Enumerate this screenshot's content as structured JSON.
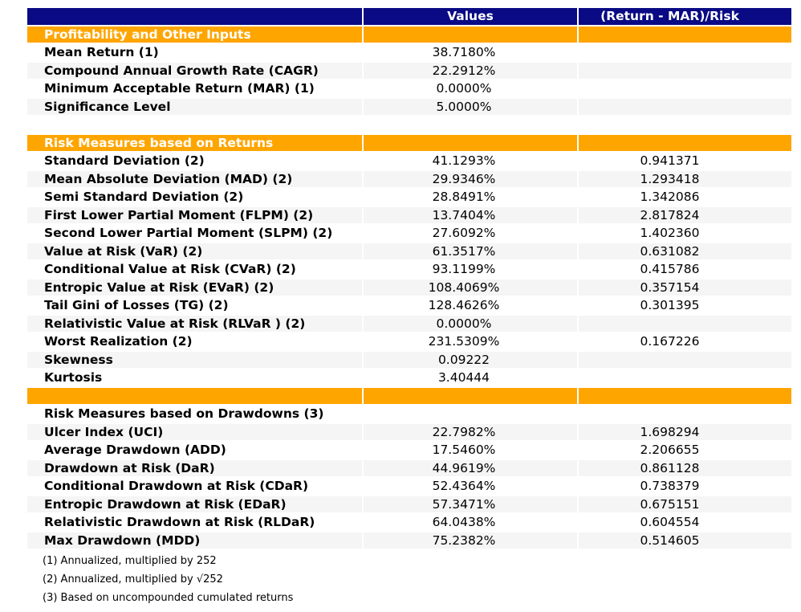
{
  "chart_data": {
    "type": "table",
    "columns": [
      {
        "label": ""
      },
      {
        "label": "Values"
      },
      {
        "label": "(Return - MAR)/Risk"
      }
    ],
    "rows": [
      {
        "type": "section",
        "label": "Profitability and Other Inputs",
        "value": "",
        "ratio": ""
      },
      {
        "type": "data",
        "label": "Mean Return (1)",
        "value": "38.7180%",
        "ratio": ""
      },
      {
        "type": "data",
        "label": "Compound Annual Growth Rate (CAGR)",
        "value": "22.2912%",
        "ratio": ""
      },
      {
        "type": "data",
        "label": "Minimum Acceptable Return (MAR) (1)",
        "value": "0.0000%",
        "ratio": ""
      },
      {
        "type": "data",
        "label": "Significance Level",
        "value": "5.0000%",
        "ratio": ""
      },
      {
        "type": "data",
        "label": "",
        "value": "",
        "ratio": ""
      },
      {
        "type": "section",
        "label": "Risk Measures based on Returns",
        "value": "",
        "ratio": ""
      },
      {
        "type": "data",
        "label": "Standard Deviation (2)",
        "value": "41.1293%",
        "ratio": "0.941371"
      },
      {
        "type": "data",
        "label": "Mean Absolute Deviation (MAD) (2)",
        "value": "29.9346%",
        "ratio": "1.293418"
      },
      {
        "type": "data",
        "label": "Semi Standard Deviation (2)",
        "value": "28.8491%",
        "ratio": "1.342086"
      },
      {
        "type": "data",
        "label": "First Lower Partial Moment (FLPM) (2)",
        "value": "13.7404%",
        "ratio": "2.817824"
      },
      {
        "type": "data",
        "label": "Second Lower Partial Moment (SLPM) (2)",
        "value": "27.6092%",
        "ratio": "1.402360"
      },
      {
        "type": "data",
        "label": "Value at Risk (VaR) (2)",
        "value": "61.3517%",
        "ratio": "0.631082"
      },
      {
        "type": "data",
        "label": "Conditional Value at Risk (CVaR) (2)",
        "value": "93.1199%",
        "ratio": "0.415786"
      },
      {
        "type": "data",
        "label": "Entropic Value at Risk (EVaR) (2)",
        "value": "108.4069%",
        "ratio": "0.357154"
      },
      {
        "type": "data",
        "label": "Tail Gini of Losses (TG) (2)",
        "value": "128.4626%",
        "ratio": "0.301395"
      },
      {
        "type": "data",
        "label": "Relativistic Value at Risk (RLVaR ) (2)",
        "value": "0.0000%",
        "ratio": ""
      },
      {
        "type": "data",
        "label": "Worst Realization (2)",
        "value": "231.5309%",
        "ratio": "0.167226"
      },
      {
        "type": "data",
        "label": "Skewness",
        "value": "0.09222",
        "ratio": ""
      },
      {
        "type": "data",
        "label": "Kurtosis",
        "value": "3.40444",
        "ratio": ""
      },
      {
        "type": "section",
        "label": "",
        "value": "",
        "ratio": ""
      },
      {
        "type": "data",
        "label": "Risk Measures based on Drawdowns (3)",
        "value": "",
        "ratio": ""
      },
      {
        "type": "data",
        "label": "Ulcer Index (UCI)",
        "value": "22.7982%",
        "ratio": "1.698294"
      },
      {
        "type": "data",
        "label": "Average Drawdown (ADD)",
        "value": "17.5460%",
        "ratio": "2.206655"
      },
      {
        "type": "data",
        "label": "Drawdown at Risk (DaR)",
        "value": "44.9619%",
        "ratio": "0.861128"
      },
      {
        "type": "data",
        "label": "Conditional Drawdown at Risk (CDaR)",
        "value": "52.4364%",
        "ratio": "0.738379"
      },
      {
        "type": "data",
        "label": "Entropic Drawdown at Risk (EDaR)",
        "value": "57.3471%",
        "ratio": "0.675151"
      },
      {
        "type": "data",
        "label": "Relativistic Drawdown at Risk (RLDaR)",
        "value": "64.0438%",
        "ratio": "0.604554"
      },
      {
        "type": "data",
        "label": "Max Drawdown (MDD)",
        "value": "75.2382%",
        "ratio": "0.514605"
      }
    ],
    "footnotes": [
      "(1) Annualized, multiplied by 252",
      "(2) Annualized, multiplied by √252",
      "(3) Based on uncompounded cumulated returns"
    ],
    "colors": {
      "header_bg": "#0a0a85",
      "header_text": "#ffffff",
      "section_bg": "#ffa500",
      "section_text": "#ffffff",
      "stripe_bg": "#f5f5f5",
      "body_text": "#000000"
    }
  }
}
